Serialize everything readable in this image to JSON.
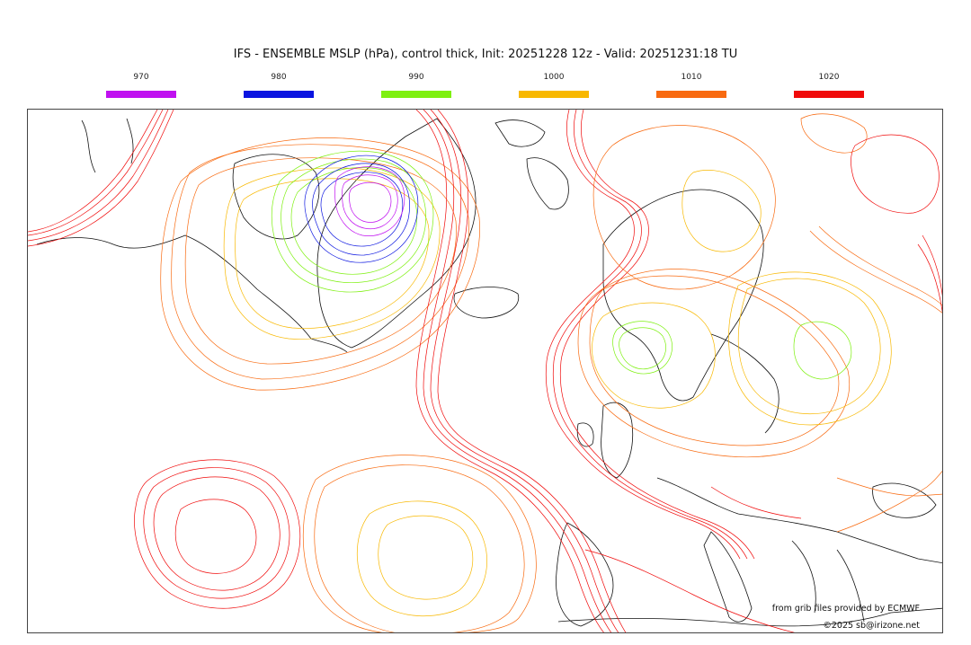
{
  "title": "IFS - ENSEMBLE MSLP (hPa), control thick, Init: 20251228 12z - Valid: 20251231:18 TU",
  "legend": [
    {
      "label": "970",
      "color": "#c010f0"
    },
    {
      "label": "980",
      "color": "#0a14e0"
    },
    {
      "label": "990",
      "color": "#7ef010"
    },
    {
      "label": "1000",
      "color": "#f8b800"
    },
    {
      "label": "1010",
      "color": "#f86a10"
    },
    {
      "label": "1020",
      "color": "#f00a0a"
    }
  ],
  "credits": {
    "source": "from grib files provided by ECMWF",
    "copyright": "©2025 sb@irizone.net"
  },
  "map": {
    "projection": "polar stereographic (North Atlantic / Arctic)",
    "features": [
      "coastlines",
      "isobar contours (ensemble members)"
    ]
  }
}
